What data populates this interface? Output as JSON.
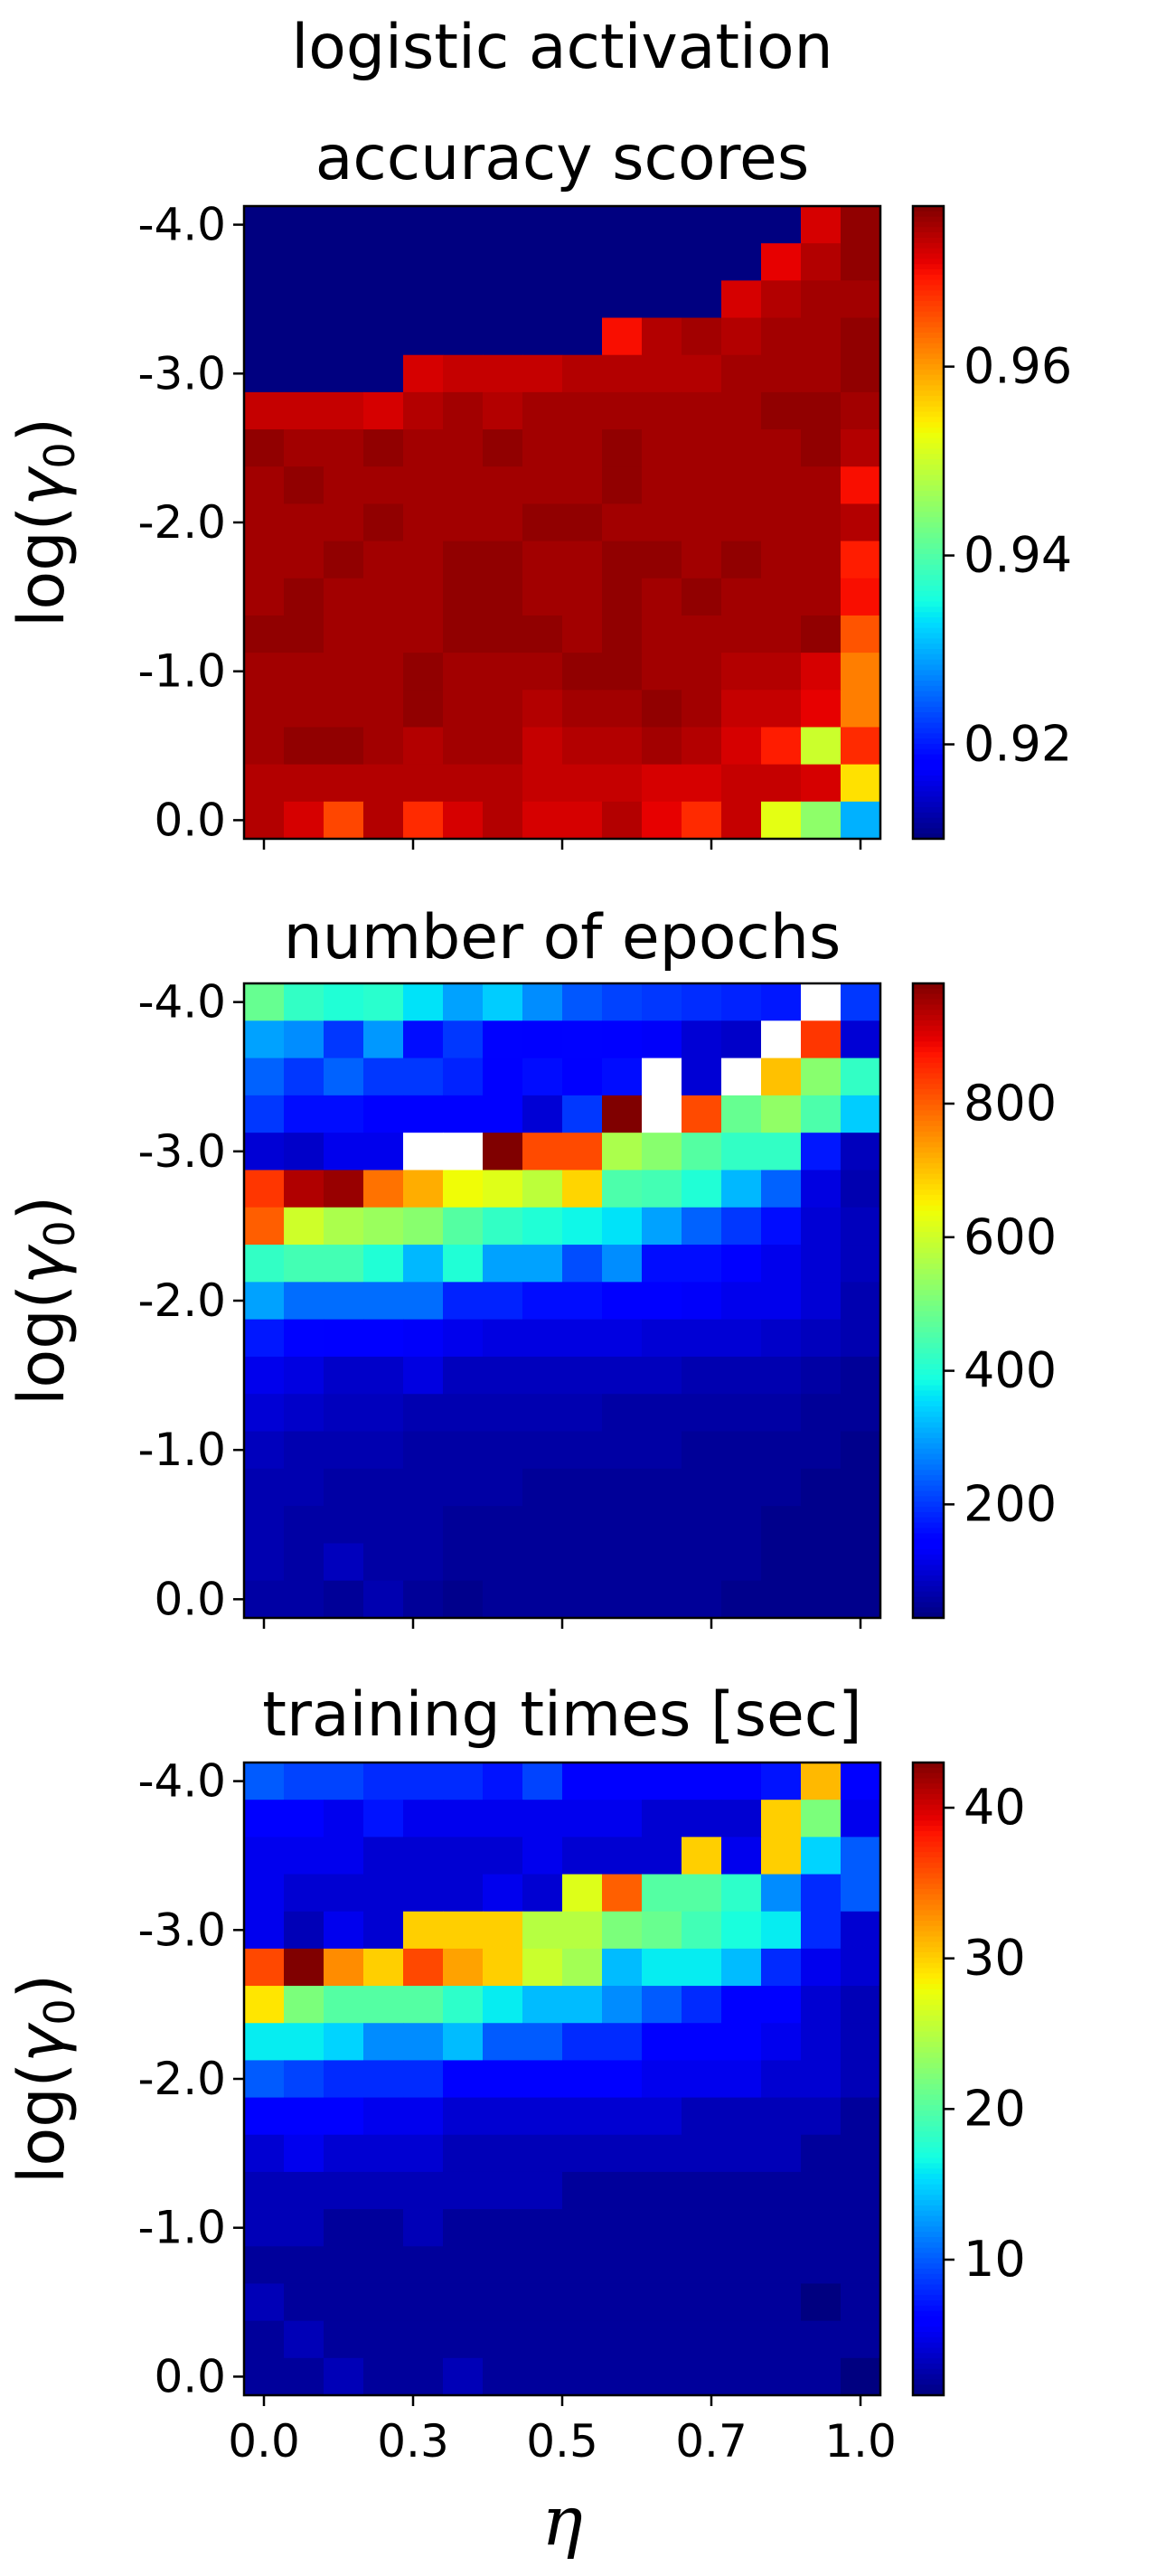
{
  "figure": {
    "suptitle": "logistic activation",
    "xlabel": "η",
    "x_tick_labels": [
      "0.0",
      "0.3",
      "0.5",
      "0.7",
      "1.0"
    ],
    "y_tick_labels": [
      "-4.0",
      "-3.0",
      "-2.0",
      "-1.0",
      "0.0"
    ],
    "ylabel_text": "log(",
    "ylabel_symbol": "γ",
    "ylabel_sub": "0",
    "ylabel_close": ")"
  },
  "chart_data": [
    {
      "type": "heatmap",
      "title": "accuracy scores",
      "colormap": "jet",
      "vmin": 0.91,
      "vmax": 0.977,
      "colorbar_ticks": [
        0.92,
        0.94,
        0.96
      ],
      "colorbar_tick_labels": [
        "0.92",
        "0.94",
        "0.96"
      ],
      "x_range": [
        0.0,
        1.0
      ],
      "y_range": [
        -4.0,
        0.0
      ],
      "rows_top_to_bottom": [
        [
          0.91,
          0.91,
          0.91,
          0.91,
          0.91,
          0.91,
          0.91,
          0.91,
          0.91,
          0.91,
          0.91,
          0.91,
          0.91,
          0.91,
          0.972,
          0.976
        ],
        [
          0.91,
          0.91,
          0.91,
          0.91,
          0.91,
          0.91,
          0.91,
          0.91,
          0.91,
          0.91,
          0.91,
          0.91,
          0.91,
          0.971,
          0.974,
          0.976
        ],
        [
          0.91,
          0.91,
          0.91,
          0.91,
          0.91,
          0.91,
          0.91,
          0.91,
          0.91,
          0.91,
          0.91,
          0.91,
          0.972,
          0.974,
          0.975,
          0.975
        ],
        [
          0.91,
          0.91,
          0.91,
          0.91,
          0.91,
          0.91,
          0.91,
          0.91,
          0.91,
          0.97,
          0.974,
          0.975,
          0.974,
          0.975,
          0.975,
          0.976
        ],
        [
          0.91,
          0.91,
          0.91,
          0.91,
          0.972,
          0.973,
          0.973,
          0.973,
          0.974,
          0.974,
          0.974,
          0.974,
          0.975,
          0.975,
          0.975,
          0.976
        ],
        [
          0.973,
          0.973,
          0.973,
          0.972,
          0.974,
          0.975,
          0.974,
          0.975,
          0.975,
          0.975,
          0.975,
          0.975,
          0.975,
          0.976,
          0.976,
          0.975
        ],
        [
          0.976,
          0.975,
          0.975,
          0.976,
          0.975,
          0.975,
          0.976,
          0.975,
          0.975,
          0.976,
          0.975,
          0.975,
          0.975,
          0.975,
          0.976,
          0.974
        ],
        [
          0.975,
          0.976,
          0.975,
          0.975,
          0.975,
          0.975,
          0.975,
          0.975,
          0.975,
          0.976,
          0.975,
          0.975,
          0.975,
          0.975,
          0.975,
          0.97
        ],
        [
          0.975,
          0.975,
          0.975,
          0.976,
          0.975,
          0.975,
          0.975,
          0.976,
          0.976,
          0.975,
          0.975,
          0.975,
          0.975,
          0.975,
          0.975,
          0.974
        ],
        [
          0.975,
          0.975,
          0.976,
          0.975,
          0.975,
          0.976,
          0.976,
          0.975,
          0.975,
          0.976,
          0.976,
          0.975,
          0.976,
          0.975,
          0.975,
          0.969
        ],
        [
          0.975,
          0.976,
          0.975,
          0.975,
          0.975,
          0.976,
          0.976,
          0.975,
          0.975,
          0.976,
          0.975,
          0.976,
          0.975,
          0.975,
          0.975,
          0.97
        ],
        [
          0.976,
          0.976,
          0.975,
          0.975,
          0.975,
          0.976,
          0.976,
          0.976,
          0.975,
          0.976,
          0.975,
          0.975,
          0.975,
          0.975,
          0.976,
          0.965
        ],
        [
          0.975,
          0.975,
          0.975,
          0.975,
          0.976,
          0.975,
          0.975,
          0.975,
          0.976,
          0.976,
          0.975,
          0.975,
          0.974,
          0.974,
          0.972,
          0.962
        ],
        [
          0.975,
          0.975,
          0.975,
          0.975,
          0.976,
          0.975,
          0.975,
          0.974,
          0.975,
          0.975,
          0.976,
          0.975,
          0.973,
          0.973,
          0.971,
          0.962
        ],
        [
          0.975,
          0.976,
          0.976,
          0.975,
          0.974,
          0.975,
          0.975,
          0.973,
          0.974,
          0.974,
          0.975,
          0.974,
          0.972,
          0.969,
          0.95,
          0.968
        ],
        [
          0.974,
          0.974,
          0.974,
          0.974,
          0.974,
          0.974,
          0.974,
          0.973,
          0.973,
          0.973,
          0.972,
          0.972,
          0.973,
          0.973,
          0.972,
          0.955
        ],
        [
          0.974,
          0.972,
          0.966,
          0.974,
          0.968,
          0.972,
          0.974,
          0.972,
          0.972,
          0.974,
          0.971,
          0.968,
          0.973,
          0.952,
          0.945,
          0.93
        ]
      ]
    },
    {
      "type": "heatmap",
      "title": "number of epochs",
      "colormap": "jet",
      "vmin": 30,
      "vmax": 980,
      "colorbar_ticks": [
        200,
        400,
        600,
        800
      ],
      "colorbar_tick_labels": [
        "200",
        "400",
        "600",
        "800"
      ],
      "x_range": [
        0.0,
        1.0
      ],
      "y_range": [
        -4.0,
        0.0
      ],
      "rows_top_to_bottom": [
        [
          480,
          420,
          400,
          410,
          360,
          300,
          340,
          280,
          230,
          210,
          200,
          190,
          180,
          170,
          null,
          200
        ],
        [
          300,
          280,
          200,
          290,
          160,
          200,
          150,
          140,
          150,
          140,
          130,
          100,
          90,
          null,
          840,
          100
        ],
        [
          240,
          200,
          240,
          200,
          200,
          180,
          140,
          160,
          140,
          160,
          null,
          100,
          null,
          700,
          520,
          420
        ],
        [
          200,
          160,
          160,
          140,
          140,
          140,
          140,
          100,
          200,
          980,
          null,
          820,
          480,
          530,
          450,
          340
        ],
        [
          100,
          90,
          120,
          120,
          null,
          null,
          980,
          820,
          820,
          560,
          520,
          460,
          420,
          420,
          170,
          80
        ],
        [
          840,
          940,
          960,
          780,
          720,
          640,
          620,
          580,
          680,
          450,
          440,
          400,
          320,
          240,
          110,
          70
        ],
        [
          800,
          600,
          560,
          540,
          520,
          460,
          420,
          400,
          380,
          360,
          300,
          240,
          200,
          160,
          100,
          80
        ],
        [
          420,
          440,
          440,
          400,
          320,
          400,
          300,
          300,
          220,
          280,
          160,
          160,
          140,
          120,
          100,
          80
        ],
        [
          300,
          250,
          250,
          250,
          250,
          180,
          180,
          160,
          160,
          140,
          140,
          130,
          120,
          120,
          100,
          70
        ],
        [
          170,
          150,
          140,
          140,
          130,
          120,
          110,
          110,
          110,
          110,
          100,
          100,
          100,
          90,
          80,
          70
        ],
        [
          120,
          110,
          90,
          90,
          110,
          80,
          80,
          80,
          80,
          80,
          80,
          70,
          70,
          70,
          60,
          50
        ],
        [
          100,
          90,
          80,
          80,
          70,
          70,
          70,
          70,
          70,
          60,
          60,
          60,
          60,
          60,
          50,
          50
        ],
        [
          80,
          70,
          70,
          70,
          60,
          60,
          60,
          60,
          60,
          60,
          60,
          50,
          50,
          50,
          50,
          40
        ],
        [
          70,
          70,
          60,
          60,
          60,
          60,
          60,
          50,
          50,
          50,
          50,
          50,
          50,
          50,
          40,
          40
        ],
        [
          70,
          60,
          60,
          60,
          60,
          50,
          50,
          50,
          50,
          50,
          50,
          50,
          50,
          40,
          40,
          40
        ],
        [
          70,
          60,
          80,
          60,
          60,
          50,
          50,
          50,
          50,
          50,
          50,
          50,
          50,
          40,
          40,
          40
        ],
        [
          60,
          60,
          50,
          70,
          50,
          40,
          50,
          50,
          50,
          50,
          50,
          50,
          40,
          40,
          40,
          40
        ]
      ]
    },
    {
      "type": "heatmap",
      "title": "training times [sec]",
      "colormap": "jet",
      "vmin": 1,
      "vmax": 43,
      "colorbar_ticks": [
        10,
        20,
        30,
        40
      ],
      "colorbar_tick_labels": [
        "10",
        "20",
        "30",
        "40"
      ],
      "x_range": [
        0.0,
        1.0
      ],
      "y_range": [
        -4.0,
        0.0
      ],
      "rows_top_to_bottom": [
        [
          10,
          9,
          9,
          8,
          8,
          8,
          7,
          9,
          6,
          6,
          6,
          6,
          6,
          7,
          31,
          6
        ],
        [
          6,
          6,
          5,
          7,
          5,
          5,
          5,
          5,
          5,
          5,
          4,
          4,
          4,
          30,
          22,
          5
        ],
        [
          5,
          5,
          5,
          4,
          4,
          4,
          4,
          5,
          4,
          4,
          4,
          30,
          5,
          30,
          15,
          10
        ],
        [
          5,
          4,
          4,
          4,
          4,
          4,
          5,
          4,
          27,
          35,
          20,
          20,
          18,
          12,
          8,
          10
        ],
        [
          5,
          3,
          5,
          4,
          30,
          30,
          30,
          25,
          25,
          22,
          21,
          19,
          17,
          16,
          8,
          4
        ],
        [
          36,
          43,
          33,
          30,
          36,
          32,
          30,
          26,
          24,
          14,
          16,
          16,
          14,
          8,
          5,
          4
        ],
        [
          29,
          22,
          20,
          20,
          20,
          18,
          16,
          14,
          14,
          12,
          10,
          8,
          6,
          6,
          4,
          3
        ],
        [
          16,
          16,
          15,
          12,
          12,
          14,
          10,
          10,
          8,
          8,
          6,
          6,
          6,
          5,
          4,
          3
        ],
        [
          10,
          9,
          8,
          8,
          8,
          6,
          6,
          6,
          6,
          6,
          5,
          5,
          5,
          4,
          4,
          3
        ],
        [
          6,
          6,
          6,
          5,
          5,
          4,
          4,
          4,
          4,
          4,
          4,
          3,
          3,
          3,
          3,
          2
        ],
        [
          4,
          5,
          4,
          4,
          4,
          3,
          3,
          3,
          3,
          3,
          3,
          3,
          3,
          3,
          2,
          2
        ],
        [
          3,
          3,
          3,
          3,
          3,
          3,
          3,
          3,
          2,
          2,
          2,
          2,
          2,
          2,
          2,
          2
        ],
        [
          3,
          3,
          2,
          2,
          3,
          2,
          2,
          2,
          2,
          2,
          2,
          2,
          2,
          2,
          2,
          2
        ],
        [
          2,
          2,
          2,
          2,
          2,
          2,
          2,
          2,
          2,
          2,
          2,
          2,
          2,
          2,
          2,
          2
        ],
        [
          3,
          2,
          2,
          2,
          2,
          2,
          2,
          2,
          2,
          2,
          2,
          2,
          2,
          2,
          1,
          2
        ],
        [
          2,
          3,
          2,
          2,
          2,
          2,
          2,
          2,
          2,
          2,
          2,
          2,
          2,
          2,
          2,
          2
        ],
        [
          2,
          2,
          3,
          2,
          2,
          3,
          2,
          2,
          2,
          2,
          2,
          2,
          2,
          2,
          2,
          1
        ]
      ]
    }
  ]
}
